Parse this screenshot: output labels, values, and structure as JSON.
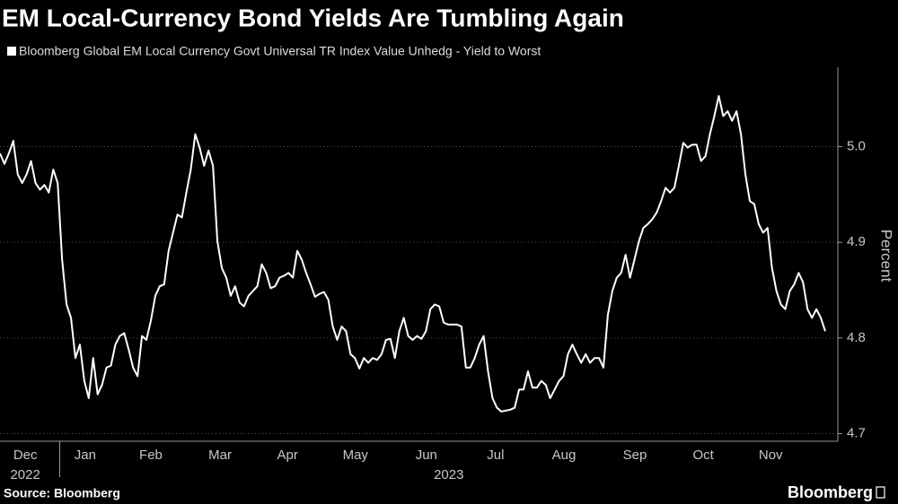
{
  "chart_data": {
    "type": "line",
    "title": "EM Local-Currency Bond Yields Are Tumbling Again",
    "y_label": "Percent",
    "source": "Source: Bloomberg",
    "brand": "Bloomberg",
    "grid": true,
    "ylim": [
      4.692,
      5.083
    ],
    "yticks": [
      4.7,
      4.8,
      4.9,
      {
        "value": 5.0,
        "label": "5.0"
      }
    ],
    "xlim": [
      0,
      186
    ],
    "xticks": [
      {
        "value": 5.7,
        "label": "Dec"
      },
      {
        "value": 19.2,
        "label": "Jan"
      },
      {
        "value": 34,
        "label": "Feb"
      },
      {
        "value": 49.6,
        "label": "Mar"
      },
      {
        "value": 64.8,
        "label": "Apr"
      },
      {
        "value": 80.1,
        "label": "May"
      },
      {
        "value": 96.1,
        "label": "Jun"
      },
      {
        "value": 111.7,
        "label": "Jul"
      },
      {
        "value": 127.1,
        "label": "Aug"
      },
      {
        "value": 143.1,
        "label": "Sep"
      },
      {
        "value": 158.5,
        "label": "Oct"
      },
      {
        "value": 173.7,
        "label": "Nov"
      }
    ],
    "year_labels": [
      "2022",
      "2023"
    ],
    "series": [
      {
        "name": "Bloomberg Global EM Local Currency Govt Universal TR Index Value Unhedg - Yield to Worst",
        "color": "#ffffff",
        "values": [
          4.993,
          4.982,
          4.993,
          5.006,
          4.971,
          4.962,
          4.971,
          4.985,
          4.962,
          4.955,
          4.96,
          4.952,
          4.976,
          4.962,
          4.882,
          4.835,
          4.821,
          4.779,
          4.793,
          4.755,
          4.737,
          4.779,
          4.741,
          4.751,
          4.769,
          4.771,
          4.793,
          4.802,
          4.805,
          4.788,
          4.769,
          4.76,
          4.802,
          4.798,
          4.818,
          4.844,
          4.854,
          4.856,
          4.891,
          4.91,
          4.929,
          4.926,
          4.952,
          4.976,
          5.013,
          4.999,
          4.98,
          4.996,
          4.98,
          4.901,
          4.873,
          4.863,
          4.844,
          4.854,
          4.837,
          4.833,
          4.844,
          4.849,
          4.854,
          4.877,
          4.868,
          4.852,
          4.854,
          4.863,
          4.865,
          4.868,
          4.863,
          4.891,
          4.882,
          4.868,
          4.856,
          4.843,
          4.846,
          4.848,
          4.84,
          4.812,
          4.798,
          4.812,
          4.807,
          4.783,
          4.779,
          4.768,
          4.779,
          4.774,
          4.779,
          4.777,
          4.783,
          4.798,
          4.799,
          4.779,
          4.807,
          4.821,
          4.802,
          4.798,
          4.802,
          4.799,
          4.807,
          4.83,
          4.835,
          4.833,
          4.816,
          4.814,
          4.814,
          4.814,
          4.812,
          4.769,
          4.769,
          4.779,
          4.793,
          4.802,
          4.765,
          4.737,
          4.727,
          4.723,
          4.724,
          4.725,
          4.727,
          4.746,
          4.746,
          4.765,
          4.748,
          4.748,
          4.755,
          4.751,
          4.737,
          4.746,
          4.755,
          4.76,
          4.783,
          4.793,
          4.783,
          4.774,
          4.783,
          4.774,
          4.779,
          4.779,
          4.769,
          4.824,
          4.849,
          4.863,
          4.868,
          4.887,
          4.863,
          4.882,
          4.901,
          4.915,
          4.919,
          4.924,
          4.931,
          4.943,
          4.957,
          4.952,
          4.957,
          4.98,
          5.004,
          4.999,
          5.002,
          5.002,
          4.985,
          4.99,
          5.013,
          5.032,
          5.053,
          5.032,
          5.037,
          5.027,
          5.037,
          5.013,
          4.971,
          4.943,
          4.94,
          4.919,
          4.91,
          4.915,
          4.873,
          4.849,
          4.835,
          4.83,
          4.849,
          4.856,
          4.868,
          4.858,
          4.83,
          4.821,
          4.83,
          4.821,
          4.807
        ]
      }
    ]
  }
}
